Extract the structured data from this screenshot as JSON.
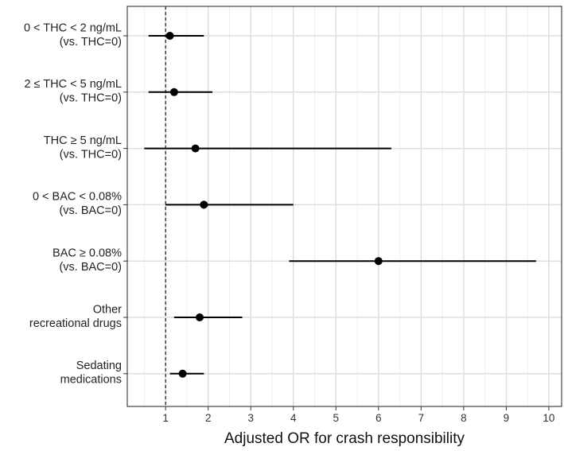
{
  "chart_data": {
    "type": "forest",
    "xlabel": "Adjusted OR for crash responsibility",
    "ylabel": "",
    "xlim": [
      0.1,
      10.3
    ],
    "xticks": [
      1,
      2,
      3,
      4,
      5,
      6,
      7,
      8,
      9,
      10
    ],
    "x_minor_ticks": [
      0.5,
      1.5,
      2.5,
      3.5,
      4.5,
      5.5,
      6.5,
      7.5,
      8.5,
      9.5
    ],
    "reference_line": 1,
    "grid": true,
    "rows": [
      {
        "label_lines": [
          "0 < THC < 2 ng/mL",
          "(vs. THC=0)"
        ],
        "or": 1.1,
        "lo": 0.6,
        "hi": 1.9
      },
      {
        "label_lines": [
          "2 ≤ THC < 5 ng/mL",
          "(vs. THC=0)"
        ],
        "or": 1.2,
        "lo": 0.6,
        "hi": 2.1
      },
      {
        "label_lines": [
          "THC ≥ 5 ng/mL",
          "(vs. THC=0)"
        ],
        "or": 1.7,
        "lo": 0.5,
        "hi": 6.3
      },
      {
        "label_lines": [
          "0 < BAC < 0.08%",
          "(vs. BAC=0)"
        ],
        "or": 1.9,
        "lo": 1.0,
        "hi": 4.0
      },
      {
        "label_lines": [
          "BAC ≥ 0.08%",
          "(vs. BAC=0)"
        ],
        "or": 6.0,
        "lo": 3.9,
        "hi": 9.7
      },
      {
        "label_lines": [
          "Other",
          "recreational drugs"
        ],
        "or": 1.8,
        "lo": 1.2,
        "hi": 2.8
      },
      {
        "label_lines": [
          "Sedating",
          "medications"
        ],
        "or": 1.4,
        "lo": 1.1,
        "hi": 1.9
      }
    ],
    "colors": {
      "panel_border": "#333333",
      "grid_major": "#dedede",
      "grid_minor": "#eeeeee",
      "points": "#000000",
      "reference_line": "#000000"
    }
  }
}
